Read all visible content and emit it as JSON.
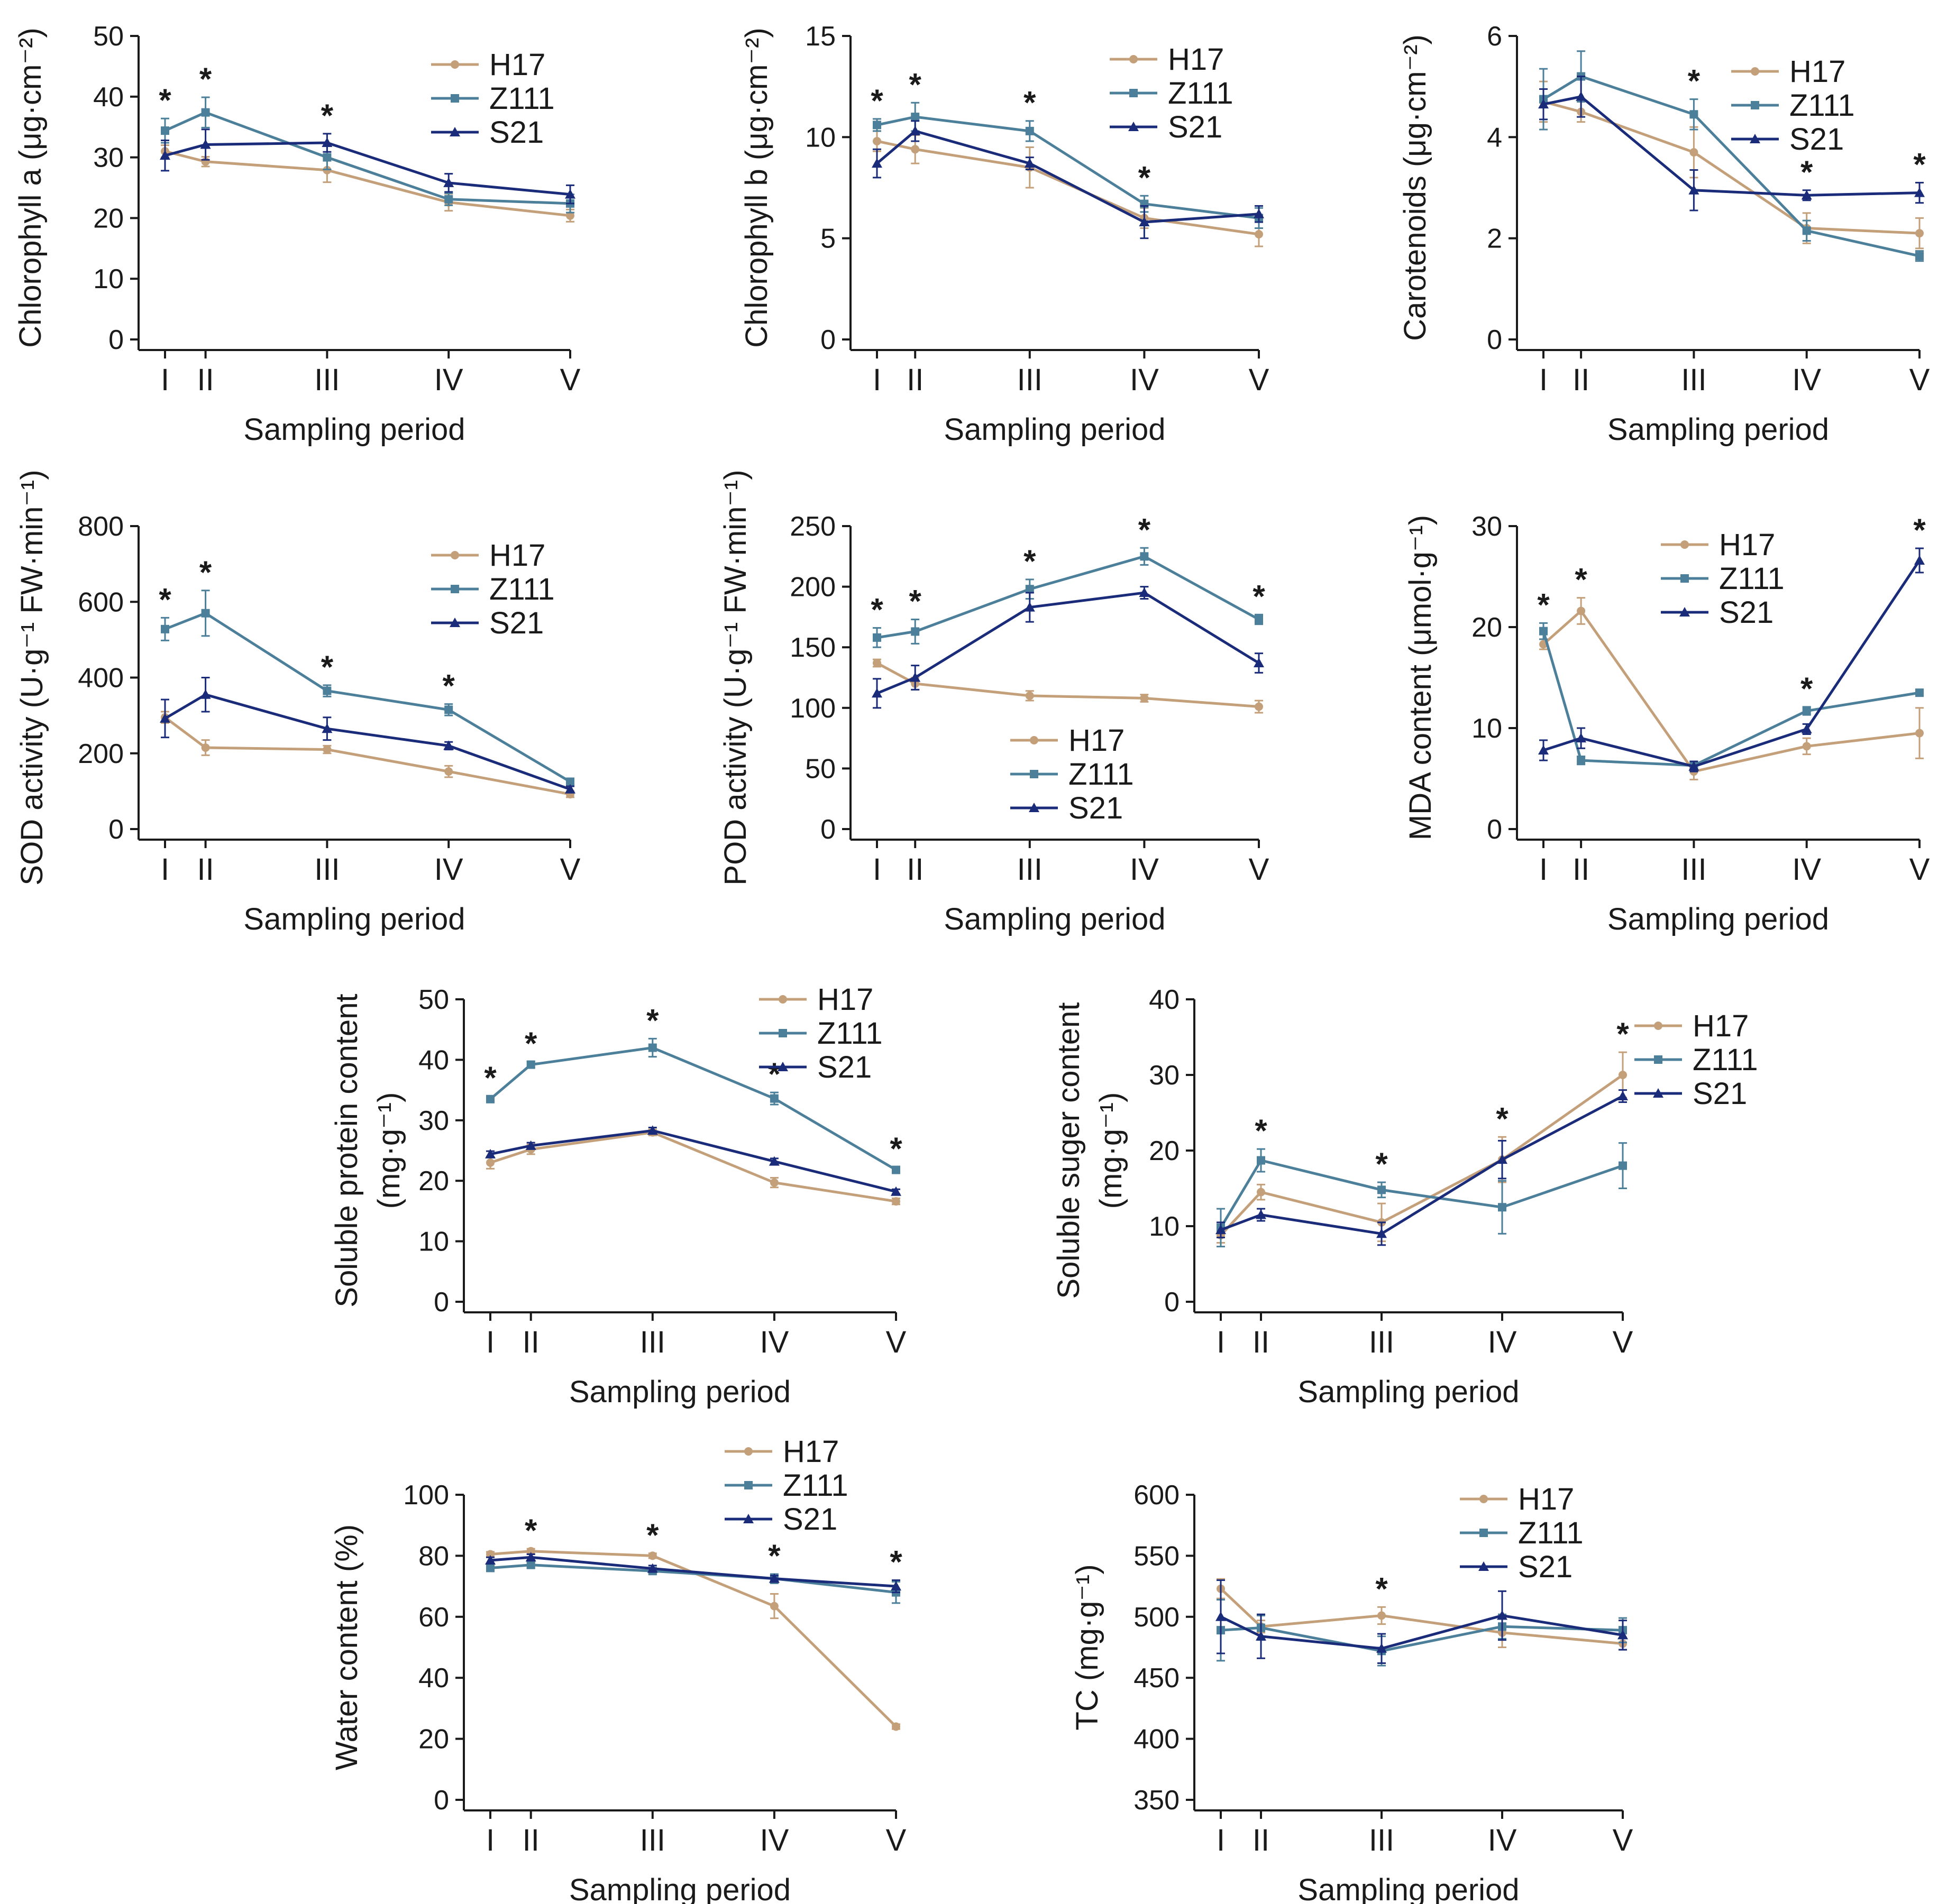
{
  "colors": {
    "H17": "#C4A07A",
    "Z111": "#4C7F99",
    "S21": "#1A2B7A",
    "axis": "#1a1a1a"
  },
  "legend_labels": [
    "H17",
    "Z111",
    "S21"
  ],
  "chart_data": [
    {
      "type": "line",
      "xlabel": "Sampling period",
      "ylabel": "Chlorophyll a (μg·cm⁻²)",
      "categories": [
        "I",
        "II",
        "III",
        "IV",
        "V"
      ],
      "x": [
        1,
        2,
        5,
        8,
        11
      ],
      "ylim": [
        0,
        50
      ],
      "yticks": [
        0,
        10,
        20,
        30,
        40,
        50
      ],
      "legend_position": "top-right",
      "series": [
        {
          "name": "H17",
          "values": [
            31.0,
            29.3,
            27.9,
            22.6,
            20.4
          ],
          "errors": [
            1.0,
            0.8,
            2.0,
            1.4,
            1.0
          ]
        },
        {
          "name": "Z111",
          "values": [
            34.4,
            37.4,
            30.0,
            23.1,
            22.4
          ],
          "errors": [
            2.0,
            2.5,
            2.0,
            1.0,
            1.5
          ]
        },
        {
          "name": "S21",
          "values": [
            30.3,
            32.1,
            32.4,
            25.8,
            23.9
          ],
          "errors": [
            2.5,
            2.5,
            1.5,
            1.5,
            1.5
          ]
        }
      ],
      "significance": [
        "I",
        "II",
        "III"
      ]
    },
    {
      "type": "line",
      "xlabel": "Sampling period",
      "ylabel": "Chlorophyll b (μg·cm⁻²)",
      "categories": [
        "I",
        "II",
        "III",
        "IV",
        "V"
      ],
      "x": [
        1,
        2,
        5,
        8,
        11
      ],
      "ylim": [
        0,
        15
      ],
      "yticks": [
        0,
        5,
        10,
        15
      ],
      "legend_position": "top-right",
      "series": [
        {
          "name": "H17",
          "values": [
            9.8,
            9.4,
            8.5,
            6.0,
            5.2
          ],
          "errors": [
            0.5,
            0.7,
            1.0,
            0.5,
            0.6
          ]
        },
        {
          "name": "Z111",
          "values": [
            10.6,
            11.0,
            10.3,
            6.7,
            6.0
          ],
          "errors": [
            0.3,
            0.7,
            0.5,
            0.4,
            0.5
          ]
        },
        {
          "name": "S21",
          "values": [
            8.7,
            10.3,
            8.7,
            5.8,
            6.2
          ],
          "errors": [
            0.7,
            0.5,
            0.3,
            0.8,
            0.4
          ]
        }
      ],
      "significance": [
        "I",
        "II",
        "III",
        "IV"
      ]
    },
    {
      "type": "line",
      "xlabel": "Sampling period",
      "ylabel": "Carotenoids (μg·cm⁻²)",
      "categories": [
        "I",
        "II",
        "III",
        "IV",
        "V"
      ],
      "x": [
        1,
        2,
        5,
        8,
        11
      ],
      "ylim": [
        0,
        6
      ],
      "yticks": [
        0,
        2,
        4,
        6
      ],
      "legend_position": "top-right",
      "series": [
        {
          "name": "H17",
          "values": [
            4.7,
            4.5,
            3.7,
            2.2,
            2.1
          ],
          "errors": [
            0.4,
            0.2,
            0.5,
            0.3,
            0.3
          ]
        },
        {
          "name": "Z111",
          "values": [
            4.75,
            5.2,
            4.45,
            2.15,
            1.65
          ],
          "errors": [
            0.6,
            0.5,
            0.3,
            0.2,
            0.1
          ]
        },
        {
          "name": "S21",
          "values": [
            4.65,
            4.8,
            2.95,
            2.85,
            2.9
          ],
          "errors": [
            0.3,
            0.4,
            0.4,
            0.1,
            0.2
          ]
        }
      ],
      "significance": [
        "III",
        "IV",
        "V"
      ]
    },
    {
      "type": "line",
      "xlabel": "Sampling period",
      "ylabel": "SOD activity (U·g⁻¹ FW·min⁻¹)",
      "categories": [
        "I",
        "II",
        "III",
        "IV",
        "V"
      ],
      "x": [
        1,
        2,
        5,
        8,
        11
      ],
      "ylim": [
        0,
        800
      ],
      "yticks": [
        0,
        200,
        400,
        600,
        800
      ],
      "legend_position": "top-right",
      "series": [
        {
          "name": "H17",
          "values": [
            295,
            215,
            210,
            152,
            92
          ],
          "errors": [
            15,
            20,
            10,
            15,
            8
          ]
        },
        {
          "name": "Z111",
          "values": [
            528,
            570,
            365,
            315,
            125
          ],
          "errors": [
            30,
            60,
            15,
            15,
            8
          ]
        },
        {
          "name": "S21",
          "values": [
            292,
            355,
            265,
            220,
            105
          ],
          "errors": [
            50,
            45,
            30,
            10,
            8
          ]
        }
      ],
      "significance": [
        "I",
        "II",
        "III",
        "IV"
      ]
    },
    {
      "type": "line",
      "xlabel": "Sampling period",
      "ylabel": "POD activity (U·g⁻¹ FW·min⁻¹)",
      "categories": [
        "I",
        "II",
        "III",
        "IV",
        "V"
      ],
      "x": [
        1,
        2,
        5,
        8,
        11
      ],
      "ylim": [
        0,
        250
      ],
      "yticks": [
        0,
        50,
        100,
        150,
        200,
        250
      ],
      "legend_position": "bottom-right",
      "series": [
        {
          "name": "H17",
          "values": [
            137,
            120,
            110,
            108,
            101
          ],
          "errors": [
            3,
            5,
            4,
            3,
            5
          ]
        },
        {
          "name": "Z111",
          "values": [
            158,
            163,
            198,
            225,
            173
          ],
          "errors": [
            8,
            10,
            8,
            7,
            4
          ]
        },
        {
          "name": "S21",
          "values": [
            112,
            125,
            183,
            195,
            137
          ],
          "errors": [
            12,
            10,
            12,
            5,
            8
          ]
        }
      ],
      "significance": [
        "I",
        "II",
        "III",
        "IV",
        "V"
      ]
    },
    {
      "type": "line",
      "xlabel": "Sampling period",
      "ylabel": "MDA content (μmol·g⁻¹)",
      "categories": [
        "I",
        "II",
        "III",
        "IV",
        "V"
      ],
      "x": [
        1,
        2,
        5,
        8,
        11
      ],
      "ylim": [
        0,
        30
      ],
      "yticks": [
        0,
        10,
        20,
        30
      ],
      "legend_position": "top-left",
      "series": [
        {
          "name": "H17",
          "values": [
            18.3,
            21.6,
            5.7,
            8.2,
            9.5
          ],
          "errors": [
            0.5,
            1.3,
            0.8,
            0.8,
            2.5
          ]
        },
        {
          "name": "Z111",
          "values": [
            19.6,
            6.8,
            6.3,
            11.7,
            13.5
          ],
          "errors": [
            0.8,
            0.4,
            0.3,
            0.4,
            0.3
          ]
        },
        {
          "name": "S21",
          "values": [
            7.8,
            9.0,
            6.2,
            9.9,
            26.6
          ],
          "errors": [
            1.0,
            1.0,
            0.5,
            0.5,
            1.2
          ]
        }
      ],
      "significance": [
        "I",
        "II",
        "IV",
        "V"
      ]
    },
    {
      "type": "line",
      "xlabel": "Sampling period",
      "ylabel": [
        "Soluble protein content",
        "(mg·g⁻¹)"
      ],
      "categories": [
        "I",
        "II",
        "III",
        "IV",
        "V"
      ],
      "x": [
        1,
        2,
        5,
        8,
        11
      ],
      "ylim": [
        0,
        50
      ],
      "yticks": [
        0,
        10,
        20,
        30,
        40,
        50
      ],
      "legend_position": "top-right",
      "series": [
        {
          "name": "H17",
          "values": [
            23.0,
            25.2,
            28.0,
            19.7,
            16.6
          ],
          "errors": [
            1.0,
            0.8,
            0.5,
            0.8,
            0.5
          ]
        },
        {
          "name": "Z111",
          "values": [
            33.5,
            39.2,
            42.0,
            33.6,
            21.8
          ],
          "errors": [
            0.5,
            0.5,
            1.5,
            1.0,
            0.5
          ]
        },
        {
          "name": "S21",
          "values": [
            24.4,
            25.8,
            28.3,
            23.2,
            18.2
          ],
          "errors": [
            0.5,
            0.5,
            0.5,
            0.5,
            0.4
          ]
        }
      ],
      "significance": [
        "I",
        "II",
        "III",
        "IV",
        "V"
      ]
    },
    {
      "type": "line",
      "xlabel": "Sampling period",
      "ylabel": [
        "Soluble suger content",
        "(mg·g⁻¹)"
      ],
      "categories": [
        "I",
        "II",
        "III",
        "IV",
        "V"
      ],
      "x": [
        1,
        2,
        5,
        8,
        11
      ],
      "ylim": [
        0,
        40
      ],
      "yticks": [
        0,
        10,
        20,
        30,
        40
      ],
      "legend_position": "top-right",
      "series": [
        {
          "name": "H17",
          "values": [
            8.8,
            14.5,
            10.5,
            18.8,
            30.0
          ],
          "errors": [
            1.0,
            1.0,
            2.5,
            3.0,
            3.0
          ]
        },
        {
          "name": "Z111",
          "values": [
            9.8,
            18.7,
            14.8,
            12.5,
            18.0
          ],
          "errors": [
            2.5,
            1.5,
            1.0,
            3.5,
            3.0
          ]
        },
        {
          "name": "S21",
          "values": [
            9.5,
            11.5,
            9.0,
            18.8,
            27.2
          ],
          "errors": [
            1.0,
            0.8,
            1.5,
            2.5,
            0.8
          ]
        }
      ],
      "significance": [
        "II",
        "III",
        "IV",
        "V"
      ]
    },
    {
      "type": "line",
      "xlabel": "Sampling period",
      "ylabel": "Water content (%)",
      "categories": [
        "I",
        "II",
        "III",
        "IV",
        "V"
      ],
      "x": [
        1,
        2,
        5,
        8,
        11
      ],
      "ylim": [
        0,
        100
      ],
      "yticks": [
        20,
        40,
        60,
        80,
        100
      ],
      "ytick_zero": "0",
      "legend_position": "top-right",
      "series": [
        {
          "name": "H17",
          "values": [
            80.5,
            81.5,
            80.0,
            63.5,
            24.0
          ],
          "errors": [
            0.8,
            0.8,
            0.8,
            4.0,
            0.8
          ]
        },
        {
          "name": "Z111",
          "values": [
            76.0,
            77.0,
            75.0,
            72.5,
            68.0
          ],
          "errors": [
            1.0,
            1.0,
            1.0,
            1.5,
            3.5
          ]
        },
        {
          "name": "S21",
          "values": [
            78.5,
            79.5,
            75.8,
            72.5,
            70.0
          ],
          "errors": [
            1.0,
            1.0,
            1.0,
            1.0,
            2.0
          ]
        }
      ],
      "significance": [
        "II",
        "III",
        "IV",
        "V"
      ]
    },
    {
      "type": "line",
      "xlabel": "Sampling period",
      "ylabel": "TC (mg·g⁻¹)",
      "categories": [
        "I",
        "II",
        "III",
        "IV",
        "V"
      ],
      "x": [
        1,
        2,
        5,
        8,
        11
      ],
      "ylim": [
        350,
        600
      ],
      "yticks": [
        350,
        400,
        450,
        500,
        550,
        600
      ],
      "legend_position": "top-right",
      "series": [
        {
          "name": "H17",
          "values": [
            523,
            492,
            501,
            487,
            478
          ],
          "errors": [
            8,
            5,
            7,
            12,
            5
          ]
        },
        {
          "name": "Z111",
          "values": [
            489,
            491,
            472,
            492,
            489
          ],
          "errors": [
            25,
            10,
            12,
            10,
            10
          ]
        },
        {
          "name": "S21",
          "values": [
            500,
            484,
            474,
            501,
            485
          ],
          "errors": [
            30,
            18,
            12,
            20,
            12
          ]
        }
      ],
      "significance": [
        "III"
      ]
    }
  ]
}
